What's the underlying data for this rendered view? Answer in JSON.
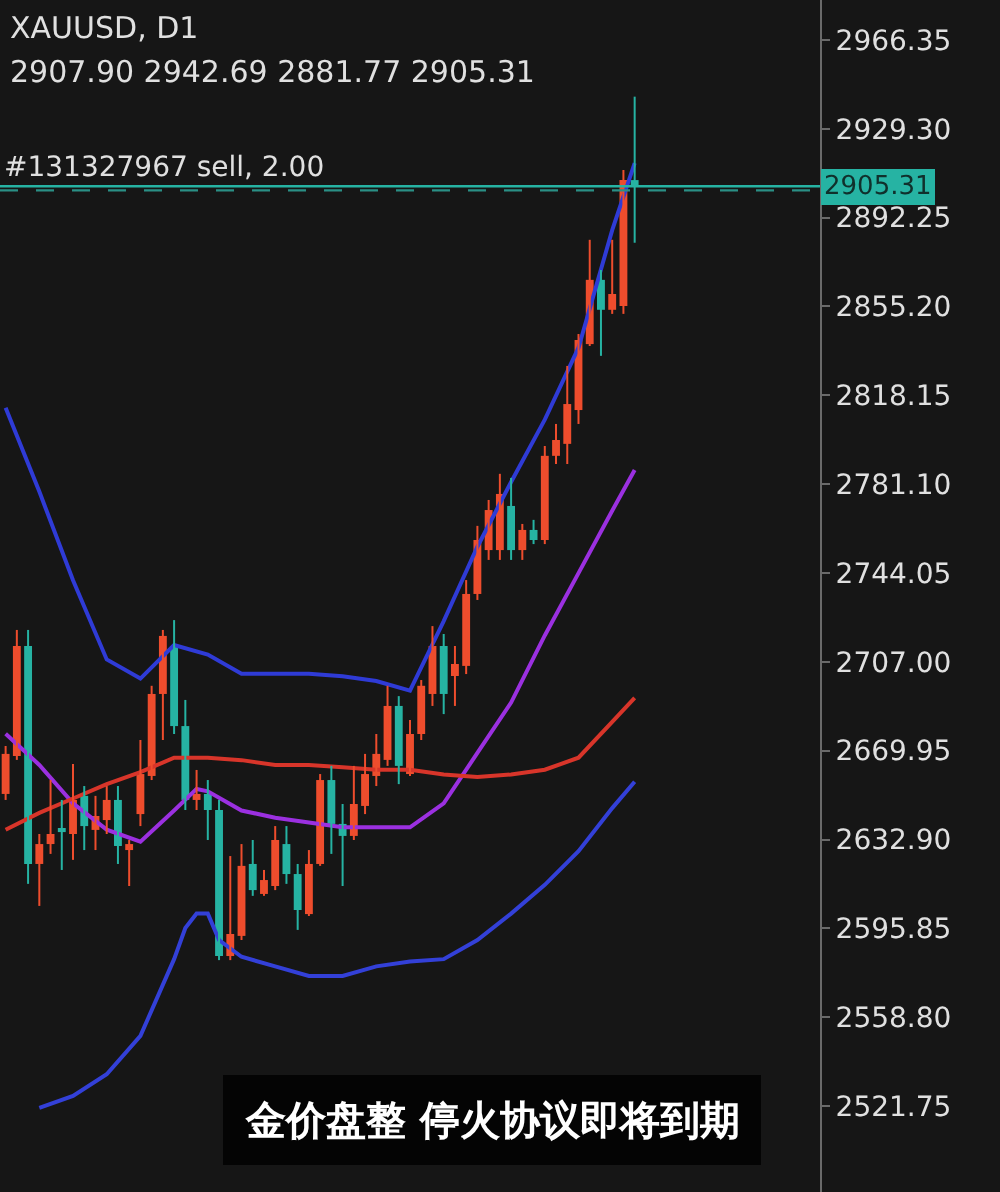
{
  "chart_data": {
    "type": "candlestick",
    "title": "XAUUSD, D1",
    "subtitle": "2907.90 2942.69 2881.77 2905.31",
    "annotations": [
      "金价盘整 停火协议即将到期"
    ],
    "categories": [
      null,
      null,
      null,
      null,
      null,
      null,
      null,
      null,
      null,
      null,
      null,
      null,
      null,
      null,
      null,
      null,
      null,
      null,
      null,
      null,
      null,
      null,
      null,
      null,
      null,
      null,
      null,
      null,
      null,
      null,
      null,
      null,
      null,
      null,
      null,
      null,
      null,
      null,
      null,
      null,
      null,
      null,
      null,
      null,
      null,
      null,
      null,
      null,
      null,
      null,
      null,
      null,
      null,
      null,
      null,
      null,
      null,
      null,
      null,
      null,
      null,
      null,
      null,
      null,
      null,
      null,
      null,
      null,
      null,
      null,
      null,
      null,
      null
    ],
    "ohlc": [
      [
        2651.9,
        2671.9,
        2649.4,
        2668.6
      ],
      [
        2667.7,
        2720.3,
        2666.1,
        2713.6
      ],
      [
        2713.6,
        2720.3,
        2614.4,
        2622.7
      ],
      [
        2622.7,
        2635.2,
        2605.2,
        2631.0
      ],
      [
        2631.0,
        2657.7,
        2626.9,
        2635.2
      ],
      [
        2637.7,
        2649.4,
        2620.2,
        2636.0
      ],
      [
        2635.2,
        2664.4,
        2624.4,
        2649.4
      ],
      [
        2651.1,
        2655.2,
        2628.5,
        2638.5
      ],
      [
        2636.9,
        2651.1,
        2628.5,
        2642.7
      ],
      [
        2641.0,
        2655.2,
        2635.2,
        2649.4
      ],
      [
        2649.4,
        2655.2,
        2622.7,
        2630.2
      ],
      [
        2628.5,
        2632.7,
        2613.5,
        2631.0
      ],
      [
        2643.5,
        2674.4,
        2638.5,
        2660.2
      ],
      [
        2659.4,
        2697.0,
        2657.7,
        2693.6
      ],
      [
        2693.6,
        2720.3,
        2674.4,
        2717.8
      ],
      [
        2713.6,
        2724.4,
        2676.9,
        2680.2
      ],
      [
        2680.2,
        2691.1,
        2645.2,
        2649.4
      ],
      [
        2649.4,
        2661.9,
        2645.2,
        2651.9
      ],
      [
        2651.9,
        2657.7,
        2632.7,
        2645.2
      ],
      [
        2645.2,
        2649.4,
        2582.6,
        2584.3
      ],
      [
        2584.3,
        2626.0,
        2582.6,
        2593.5
      ],
      [
        2592.7,
        2631.0,
        2591.0,
        2621.9
      ],
      [
        2622.7,
        2632.7,
        2609.4,
        2611.8
      ],
      [
        2610.2,
        2620.2,
        2609.4,
        2616.0
      ],
      [
        2613.5,
        2638.5,
        2611.8,
        2632.7
      ],
      [
        2631.0,
        2638.5,
        2614.4,
        2618.5
      ],
      [
        2618.5,
        2622.7,
        2595.2,
        2603.5
      ],
      [
        2601.8,
        2628.5,
        2601.0,
        2622.7
      ],
      [
        2622.7,
        2660.2,
        2621.9,
        2657.7
      ],
      [
        2657.7,
        2663.6,
        2626.9,
        2639.4
      ],
      [
        2639.4,
        2647.7,
        2613.5,
        2634.4
      ],
      [
        2634.4,
        2663.6,
        2632.7,
        2647.7
      ],
      [
        2646.9,
        2668.6,
        2643.5,
        2660.2
      ],
      [
        2659.4,
        2676.9,
        2655.2,
        2668.6
      ],
      [
        2666.1,
        2697.0,
        2663.6,
        2688.6
      ],
      [
        2688.6,
        2692.7,
        2656.0,
        2663.6
      ],
      [
        2660.2,
        2682.7,
        2659.4,
        2676.9
      ],
      [
        2676.9,
        2699.4,
        2674.4,
        2697.0
      ],
      [
        2693.6,
        2721.9,
        2688.6,
        2713.6
      ],
      [
        2713.6,
        2718.6,
        2685.2,
        2693.6
      ],
      [
        2701.1,
        2713.6,
        2688.6,
        2706.1
      ],
      [
        2705.3,
        2741.1,
        2701.9,
        2735.3
      ],
      [
        2735.3,
        2763.7,
        2732.8,
        2757.8
      ],
      [
        2753.6,
        2774.5,
        2749.5,
        2770.3
      ],
      [
        2753.6,
        2785.4,
        2749.5,
        2777.0
      ],
      [
        2772.0,
        2783.7,
        2749.5,
        2753.6
      ],
      [
        2753.6,
        2764.5,
        2749.5,
        2762.0
      ],
      [
        2762.0,
        2766.2,
        2756.1,
        2757.8
      ],
      [
        2757.8,
        2797.0,
        2756.1,
        2792.9
      ],
      [
        2792.9,
        2806.2,
        2789.5,
        2799.5
      ],
      [
        2797.9,
        2830.4,
        2789.5,
        2814.5
      ],
      [
        2812.0,
        2843.7,
        2806.2,
        2841.2
      ],
      [
        2839.5,
        2883.0,
        2838.7,
        2866.3
      ],
      [
        2866.3,
        2870.4,
        2834.6,
        2853.8
      ],
      [
        2853.8,
        2883.0,
        2852.1,
        2860.4
      ],
      [
        2855.4,
        2912.1,
        2852.1,
        2907.9
      ],
      [
        2907.9,
        2942.69,
        2881.77,
        2905.31
      ],
      null,
      null,
      null,
      null,
      null,
      null,
      null,
      null,
      null,
      null,
      null,
      null,
      null,
      null,
      null,
      null
    ],
    "colors": [
      "#ee4d2d",
      "#ee4d2d",
      "#26b3a3",
      "#ee4d2d",
      "#ee4d2d",
      "#26b3a3",
      "#ee4d2d",
      "#26b3a3",
      "#ee4d2d",
      "#ee4d2d",
      "#26b3a3",
      "#ee4d2d",
      "#ee4d2d",
      "#ee4d2d",
      "#ee4d2d",
      "#26b3a3",
      "#26b3a3",
      "#ee4d2d",
      "#26b3a3",
      "#26b3a3",
      "#ee4d2d",
      "#ee4d2d",
      "#26b3a3",
      "#ee4d2d",
      "#ee4d2d",
      "#26b3a3",
      "#26b3a3",
      "#ee4d2d",
      "#ee4d2d",
      "#26b3a3",
      "#26b3a3",
      "#ee4d2d",
      "#ee4d2d",
      "#ee4d2d",
      "#ee4d2d",
      "#26b3a3",
      "#ee4d2d",
      "#ee4d2d",
      "#ee4d2d",
      "#26b3a3",
      "#ee4d2d",
      "#ee4d2d",
      "#ee4d2d",
      "#ee4d2d",
      "#ee4d2d",
      "#26b3a3",
      "#ee4d2d",
      "#26b3a3",
      "#ee4d2d",
      "#ee4d2d",
      "#ee4d2d",
      "#ee4d2d",
      "#ee4d2d",
      "#26b3a3",
      "#ee4d2d",
      "#ee4d2d",
      "#26b3a3",
      null,
      null,
      null,
      null,
      null,
      null,
      null,
      null,
      null,
      null,
      null,
      null,
      null,
      null,
      null,
      null
    ],
    "series": [
      {
        "type": "line",
        "color": "#2f3bd6",
        "values": [
          2813,
          null,
          null,
          2778,
          null,
          null,
          2741,
          null,
          null,
          2708,
          null,
          null,
          2700,
          null,
          null,
          2714,
          null,
          null,
          2710,
          null,
          null,
          2702,
          null,
          null,
          2702,
          null,
          null,
          2702,
          null,
          null,
          2701,
          null,
          null,
          2699,
          null,
          null,
          2695,
          null,
          null,
          2724,
          null,
          null,
          2755,
          null,
          null,
          2782,
          null,
          null,
          2808,
          null,
          null,
          2838,
          null,
          null,
          2887,
          null,
          2915,
          null,
          null,
          null,
          null,
          null,
          null,
          null,
          null,
          null,
          null,
          null,
          null,
          null,
          null,
          null,
          null
        ]
      },
      {
        "type": "line",
        "color": "#3340d8",
        "values": [
          null,
          null,
          null,
          2521,
          null,
          null,
          2526,
          null,
          null,
          2535,
          null,
          null,
          2551,
          null,
          null,
          2583,
          2596,
          2602,
          2602,
          2591,
          null,
          2584,
          null,
          null,
          2580,
          null,
          null,
          2576,
          null,
          null,
          2576,
          null,
          null,
          2580,
          null,
          null,
          2582,
          null,
          null,
          2583,
          null,
          null,
          2591,
          null,
          null,
          2602,
          null,
          null,
          2614,
          null,
          null,
          2628,
          null,
          null,
          2646,
          null,
          2657,
          null,
          null,
          null,
          null,
          null,
          null,
          null,
          null,
          null,
          null,
          null,
          null,
          null,
          null,
          null,
          null
        ]
      },
      {
        "type": "line",
        "color": "#9b30e0",
        "values": [
          2677,
          null,
          null,
          2664,
          null,
          null,
          2648,
          null,
          null,
          2637,
          null,
          null,
          2632,
          null,
          null,
          2645,
          null,
          2654,
          2653,
          null,
          null,
          2645,
          null,
          null,
          2642,
          null,
          null,
          2640,
          null,
          null,
          2638,
          null,
          null,
          2638,
          null,
          null,
          2638,
          null,
          null,
          2648,
          null,
          null,
          2669,
          null,
          null,
          2690,
          null,
          null,
          2718,
          null,
          null,
          2744,
          null,
          null,
          2770,
          null,
          2787,
          null,
          null,
          null,
          null,
          null,
          null,
          null,
          null,
          null,
          null,
          null,
          null,
          null,
          null,
          null,
          null
        ]
      },
      {
        "type": "line",
        "color": "#d8352a",
        "values": [
          2637,
          null,
          null,
          2644,
          null,
          null,
          2650,
          null,
          null,
          2656,
          null,
          null,
          2661,
          null,
          null,
          2667,
          null,
          null,
          2667,
          null,
          null,
          2666,
          null,
          null,
          2664,
          null,
          null,
          2664,
          null,
          null,
          2663,
          null,
          null,
          2662,
          null,
          null,
          2662,
          null,
          null,
          2660,
          null,
          null,
          2659,
          null,
          null,
          2660,
          null,
          null,
          2662,
          null,
          null,
          2667,
          null,
          null,
          2682,
          null,
          2692,
          null,
          null,
          null,
          null,
          null,
          null,
          null,
          null,
          null,
          null,
          null,
          null,
          null,
          null,
          null,
          null
        ]
      }
    ],
    "ylim": [
      2485.9,
      2983.0
    ],
    "yticks": [
      {
        "value": 2521.75,
        "label": "2521.75"
      },
      {
        "value": 2558.8,
        "label": "2558.80"
      },
      {
        "value": 2595.85,
        "label": "2595.85"
      },
      {
        "value": 2632.9,
        "label": "2632.90"
      },
      {
        "value": 2669.95,
        "label": "2669.95"
      },
      {
        "value": 2707,
        "label": "2707.00"
      },
      {
        "value": 2744.05,
        "label": "2744.05"
      },
      {
        "value": 2781.1,
        "label": "2781.10"
      },
      {
        "value": 2818.15,
        "label": "2818.15"
      },
      {
        "value": 2855.2,
        "label": "2855.20"
      },
      {
        "value": 2892.25,
        "label": "2892.25"
      },
      {
        "value": 2929.3,
        "label": "2929.30"
      },
      {
        "value": 2966.35,
        "label": "2966.35"
      }
    ],
    "ref_lines": [
      {
        "axis": "y",
        "value": 2905.31,
        "label": "2905.31",
        "color": "#26b3a3",
        "line_style": "solid"
      },
      {
        "axis": "y",
        "value": 2903.6,
        "label": "#131327967 sell, 2.00",
        "color": "#2a8f85",
        "line_style": "dashed"
      }
    ]
  }
}
